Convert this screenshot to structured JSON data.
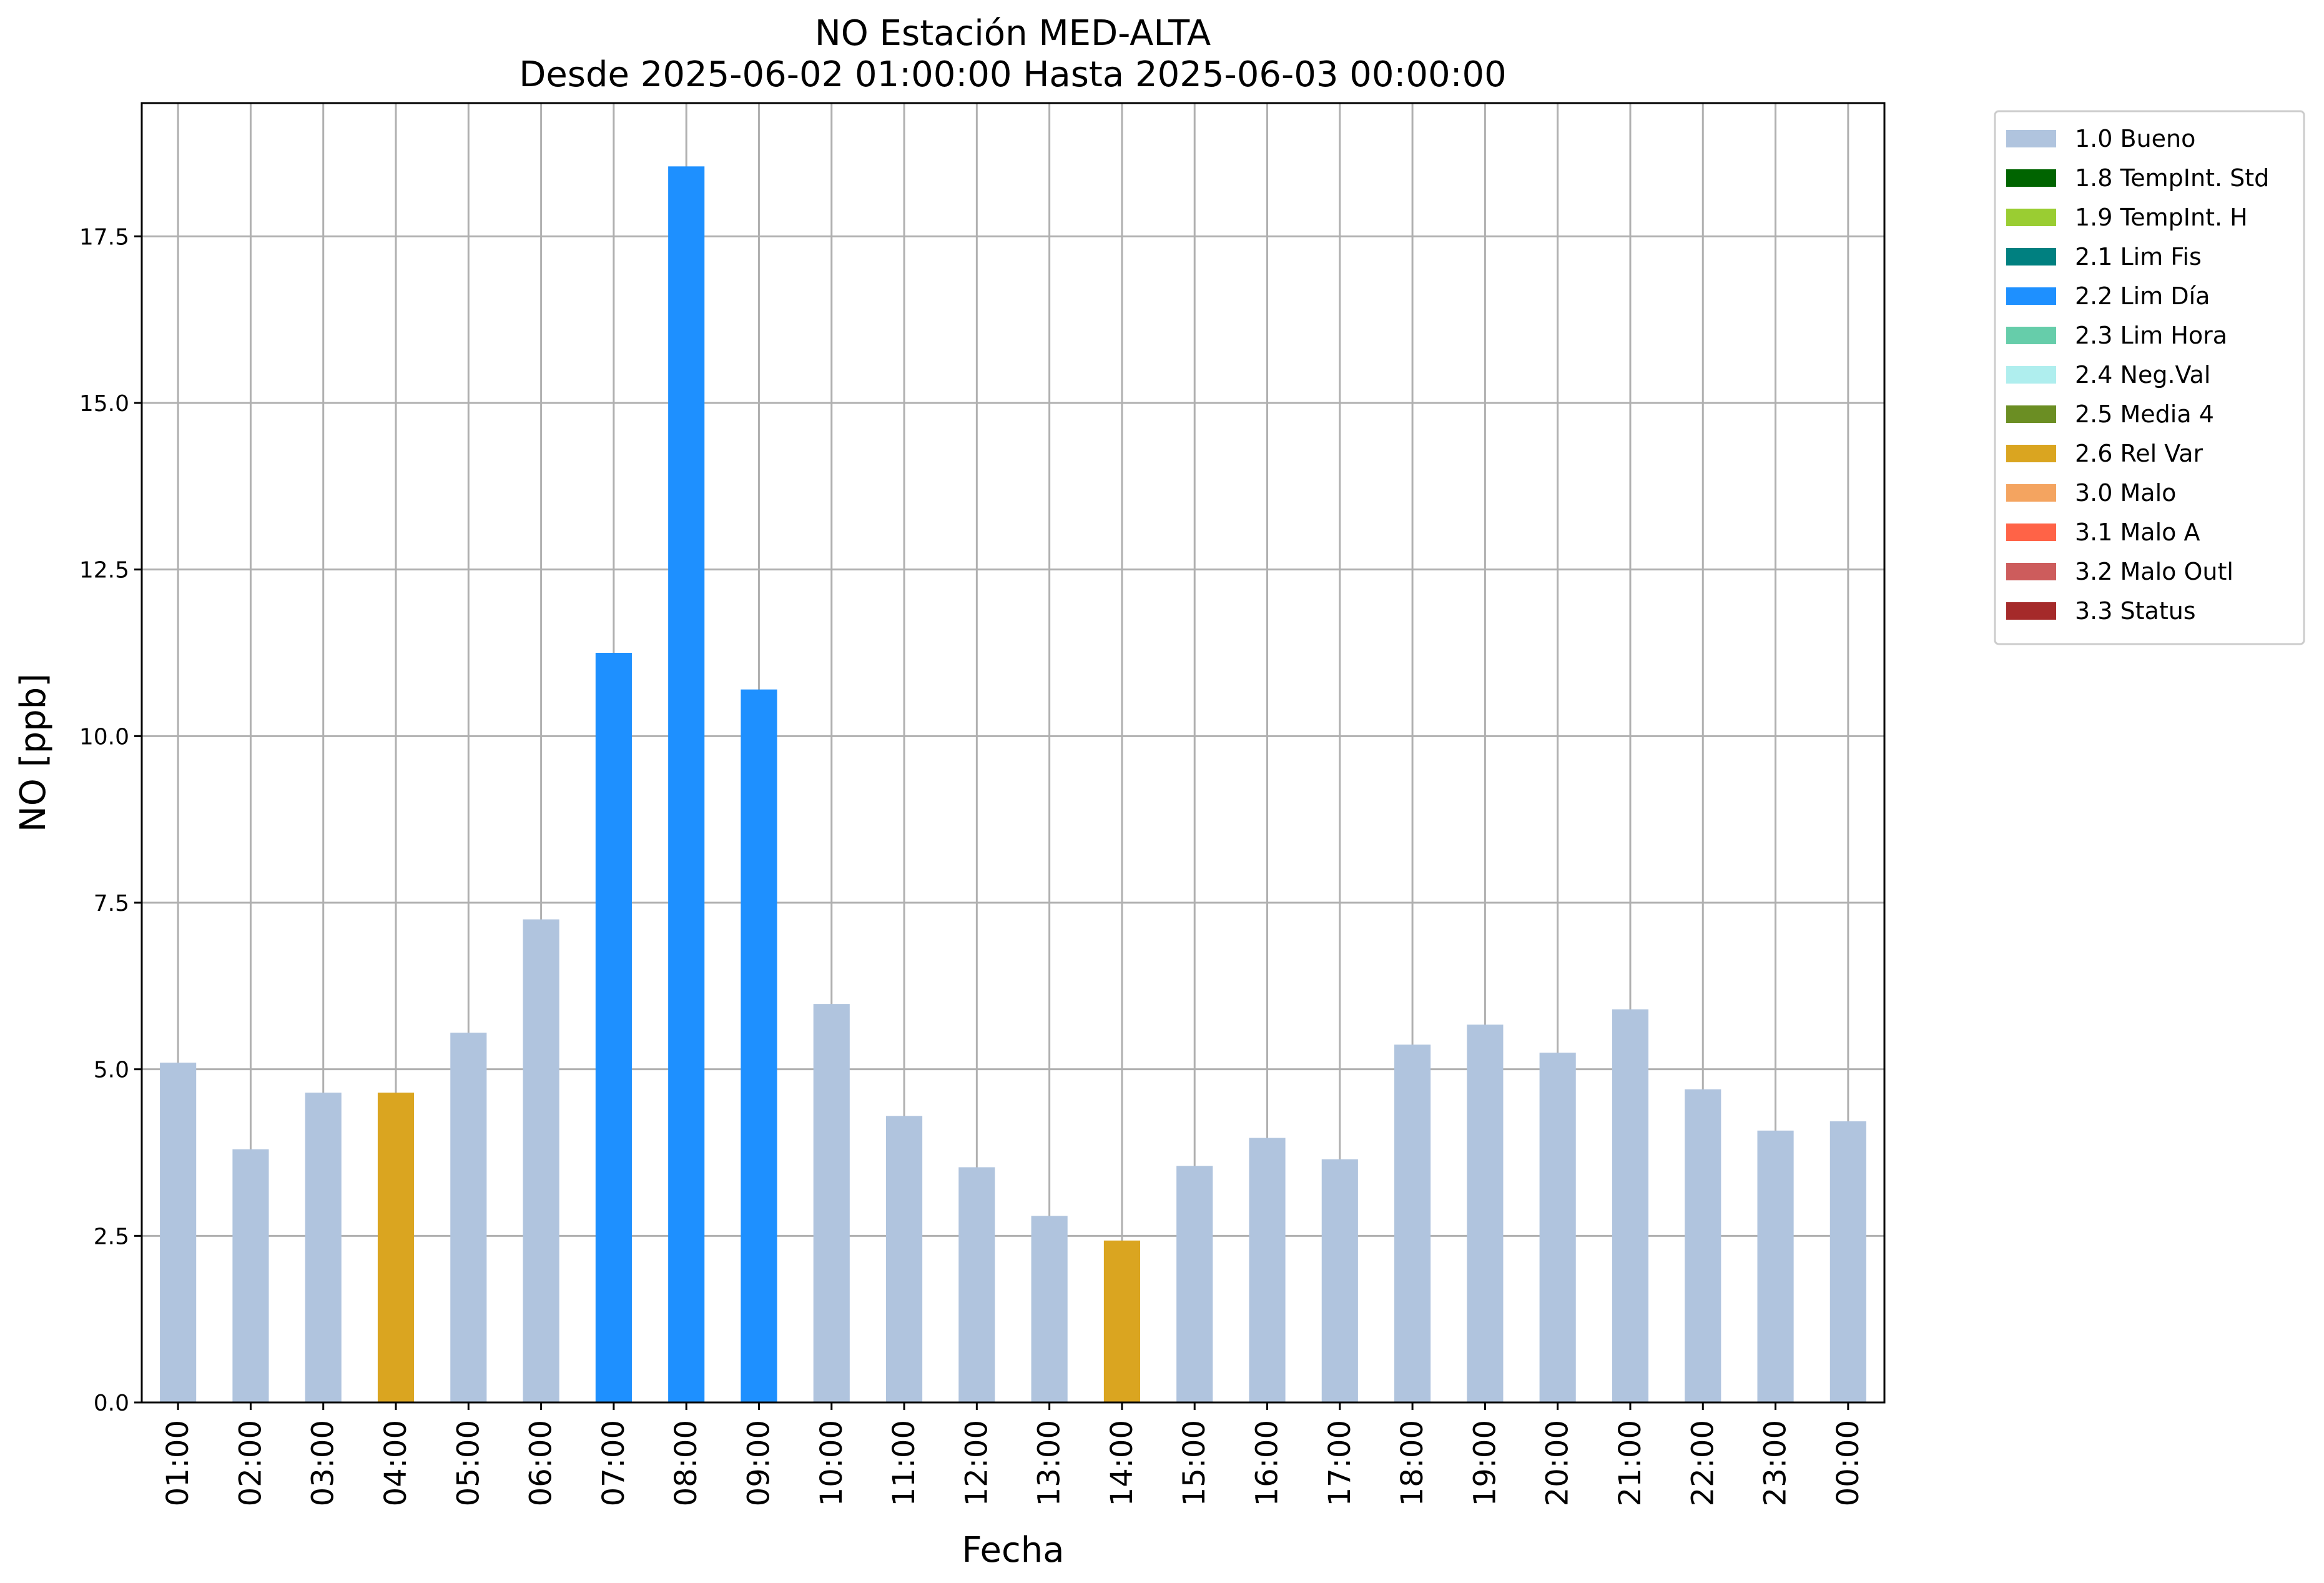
{
  "chart_data": {
    "type": "bar",
    "title": "NO Estación MED-ALTA",
    "subtitle": "Desde 2025-06-02 01:00:00 Hasta 2025-06-03 00:00:00",
    "xlabel": "Fecha",
    "ylabel": "NO [ppb]",
    "ylim": [
      0,
      19.5
    ],
    "yticks": [
      "0.0",
      "2.5",
      "5.0",
      "7.5",
      "10.0",
      "12.5",
      "15.0",
      "17.5"
    ],
    "ytick_values": [
      0,
      2.5,
      5,
      7.5,
      10,
      12.5,
      15,
      17.5
    ],
    "grid": true,
    "legend_position": "outside-top-right",
    "categories": [
      "01:00",
      "02:00",
      "03:00",
      "04:00",
      "05:00",
      "06:00",
      "07:00",
      "08:00",
      "09:00",
      "10:00",
      "11:00",
      "12:00",
      "13:00",
      "14:00",
      "15:00",
      "16:00",
      "17:00",
      "18:00",
      "19:00",
      "20:00",
      "21:00",
      "22:00",
      "23:00",
      "00:00"
    ],
    "values": [
      5.1,
      3.8,
      4.65,
      4.65,
      5.55,
      7.25,
      11.25,
      18.55,
      10.7,
      5.98,
      4.3,
      3.53,
      2.8,
      2.43,
      3.55,
      3.97,
      3.65,
      5.37,
      5.67,
      5.25,
      5.9,
      4.7,
      4.08,
      4.22
    ],
    "flags": [
      "1.0 Bueno",
      "1.0 Bueno",
      "1.0 Bueno",
      "2.6 Rel Var",
      "1.0 Bueno",
      "1.0 Bueno",
      "2.2 Lim Día",
      "2.2 Lim Día",
      "2.2 Lim Día",
      "1.0 Bueno",
      "1.0 Bueno",
      "1.0 Bueno",
      "1.0 Bueno",
      "2.6 Rel Var",
      "1.0 Bueno",
      "1.0 Bueno",
      "1.0 Bueno",
      "1.0 Bueno",
      "1.0 Bueno",
      "1.0 Bueno",
      "1.0 Bueno",
      "1.0 Bueno",
      "1.0 Bueno",
      "1.0 Bueno"
    ],
    "legend": [
      {
        "label": "1.0 Bueno",
        "color": "#b0c4de"
      },
      {
        "label": "1.8 TempInt. Std",
        "color": "#006400"
      },
      {
        "label": "1.9 TempInt. H",
        "color": "#9acd32"
      },
      {
        "label": "2.1 Lim Fis",
        "color": "#008080"
      },
      {
        "label": "2.2 Lim Día",
        "color": "#1e90ff"
      },
      {
        "label": "2.3 Lim Hora",
        "color": "#66cdaa"
      },
      {
        "label": "2.4 Neg.Val",
        "color": "#afeeee"
      },
      {
        "label": "2.5 Media 4",
        "color": "#6b8e23"
      },
      {
        "label": "2.6 Rel Var",
        "color": "#daa520"
      },
      {
        "label": "3.0 Malo",
        "color": "#f4a460"
      },
      {
        "label": "3.1 Malo A",
        "color": "#ff6347"
      },
      {
        "label": "3.2 Malo Outl",
        "color": "#cd5c5c"
      },
      {
        "label": "3.3 Status",
        "color": "#a52a2a"
      }
    ]
  }
}
